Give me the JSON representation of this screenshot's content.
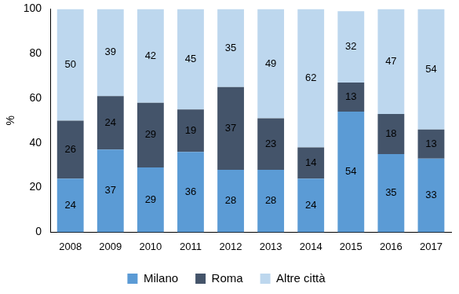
{
  "chart_data": {
    "type": "bar",
    "stacked": true,
    "data_labels": true,
    "grid": false,
    "legend": "bottom",
    "y_label": "%",
    "categories": [
      "2008",
      "2009",
      "2010",
      "2011",
      "2012",
      "2013",
      "2014",
      "2015",
      "2016",
      "2017"
    ],
    "series": [
      {
        "name": "Milano",
        "color": "#5b9bd5",
        "values": [
          24,
          37,
          29,
          36,
          28,
          28,
          24,
          54,
          35,
          33
        ]
      },
      {
        "name": "Roma",
        "color": "#44546a",
        "values": [
          26,
          24,
          29,
          19,
          37,
          23,
          14,
          13,
          18,
          13
        ]
      },
      {
        "name": "Altre città",
        "color": "#bdd7ee",
        "values": [
          50,
          39,
          42,
          45,
          35,
          49,
          62,
          32,
          47,
          54
        ]
      }
    ],
    "ylim": [
      0,
      100
    ],
    "yticks": [
      0,
      20,
      40,
      60,
      80,
      100
    ]
  }
}
